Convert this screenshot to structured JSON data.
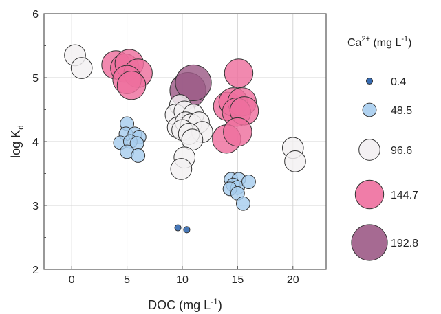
{
  "chart_data": {
    "type": "scatter",
    "xlabel": "DOC (mg L",
    "xlabel_sup": "-1",
    "xlabel_end": ")",
    "ylabel": "log K",
    "ylabel_sub": "d",
    "xlim": [
      -2.5,
      23
    ],
    "ylim": [
      2,
      6
    ],
    "x_ticks": [
      0,
      5,
      10,
      15,
      20
    ],
    "y_ticks": [
      2,
      3,
      4,
      5,
      6
    ],
    "grid": true,
    "legend_placement": "right",
    "legend": {
      "title": "Ca",
      "title_sup": "2+",
      "title_rest": " (mg L",
      "title_sup2": "-1",
      "title_end": ")",
      "entries": [
        {
          "label": "0.4",
          "ca": 0.4
        },
        {
          "label": "48.5",
          "ca": 48.5
        },
        {
          "label": "96.6",
          "ca": 96.6
        },
        {
          "label": "144.7",
          "ca": 144.7
        },
        {
          "label": "192.8",
          "ca": 192.8
        }
      ]
    },
    "series": [
      {
        "ca": 192.8,
        "color": "#9c5a86",
        "points": [
          {
            "x": 10.5,
            "y": 4.8
          },
          {
            "x": 11.0,
            "y": 4.92
          }
        ]
      },
      {
        "ca": 144.7,
        "color": "#ee6f9e",
        "points": [
          {
            "x": 4.0,
            "y": 5.2
          },
          {
            "x": 4.8,
            "y": 5.15
          },
          {
            "x": 5.2,
            "y": 5.22
          },
          {
            "x": 6.0,
            "y": 5.07
          },
          {
            "x": 5.0,
            "y": 4.97
          },
          {
            "x": 5.4,
            "y": 4.88
          },
          {
            "x": 15.1,
            "y": 5.07
          },
          {
            "x": 14.1,
            "y": 4.55
          },
          {
            "x": 14.6,
            "y": 4.62
          },
          {
            "x": 15.4,
            "y": 4.62
          },
          {
            "x": 14.9,
            "y": 4.46
          },
          {
            "x": 15.6,
            "y": 4.48
          },
          {
            "x": 14.0,
            "y": 4.04
          },
          {
            "x": 15.0,
            "y": 4.15
          }
        ]
      },
      {
        "ca": 96.6,
        "color": "#f3f0f2",
        "points": [
          {
            "x": 0.3,
            "y": 5.35
          },
          {
            "x": 0.9,
            "y": 5.15
          },
          {
            "x": 9.8,
            "y": 4.57
          },
          {
            "x": 9.4,
            "y": 4.42
          },
          {
            "x": 10.2,
            "y": 4.47
          },
          {
            "x": 11.0,
            "y": 4.42
          },
          {
            "x": 9.6,
            "y": 4.22
          },
          {
            "x": 10.3,
            "y": 4.3
          },
          {
            "x": 10.8,
            "y": 4.27
          },
          {
            "x": 11.5,
            "y": 4.3
          },
          {
            "x": 10.0,
            "y": 4.18
          },
          {
            "x": 11.8,
            "y": 4.15
          },
          {
            "x": 10.6,
            "y": 4.12
          },
          {
            "x": 10.9,
            "y": 4.03
          },
          {
            "x": 10.2,
            "y": 3.75
          },
          {
            "x": 9.9,
            "y": 3.57
          },
          {
            "x": 20.0,
            "y": 3.9
          },
          {
            "x": 20.2,
            "y": 3.69
          }
        ]
      },
      {
        "ca": 48.5,
        "color": "#a7cdee",
        "points": [
          {
            "x": 5.0,
            "y": 4.28
          },
          {
            "x": 4.9,
            "y": 4.12
          },
          {
            "x": 5.7,
            "y": 4.12
          },
          {
            "x": 6.1,
            "y": 4.07
          },
          {
            "x": 4.4,
            "y": 3.98
          },
          {
            "x": 5.3,
            "y": 4.0
          },
          {
            "x": 5.9,
            "y": 3.97
          },
          {
            "x": 5.0,
            "y": 3.84
          },
          {
            "x": 6.0,
            "y": 3.78
          },
          {
            "x": 14.4,
            "y": 3.41
          },
          {
            "x": 15.1,
            "y": 3.41
          },
          {
            "x": 14.6,
            "y": 3.32
          },
          {
            "x": 15.0,
            "y": 3.28
          },
          {
            "x": 16.0,
            "y": 3.37
          },
          {
            "x": 14.3,
            "y": 3.26
          },
          {
            "x": 15.0,
            "y": 3.19
          },
          {
            "x": 15.5,
            "y": 3.03
          }
        ]
      },
      {
        "ca": 0.4,
        "color": "#1f5aa8",
        "points": [
          {
            "x": 9.6,
            "y": 2.65
          },
          {
            "x": 10.4,
            "y": 2.62
          }
        ]
      }
    ]
  }
}
